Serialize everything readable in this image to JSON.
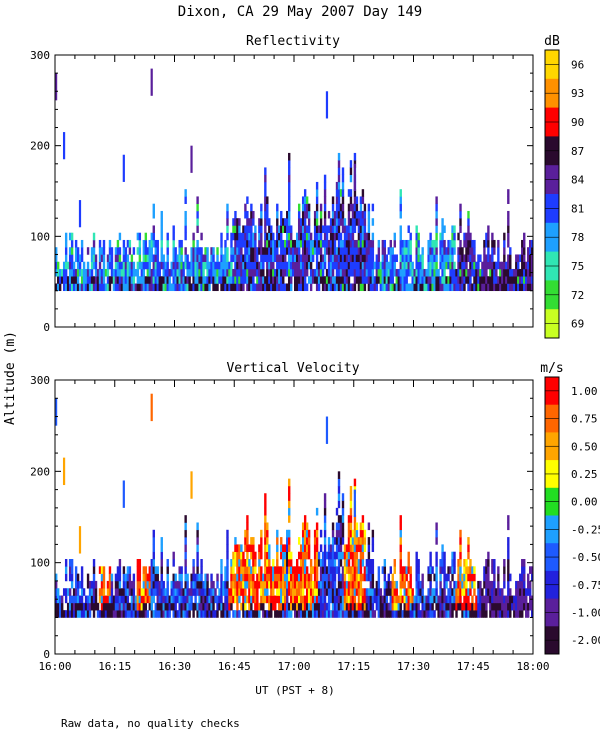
{
  "title": "Dixon, CA 29 May 2007  Day 149",
  "ylabel": "Altitude (m)",
  "xlabel": "UT  (PST + 8)",
  "footnote": "Raw data, no quality checks",
  "chart_data": [
    {
      "type": "heatmap",
      "title": "Reflectivity",
      "colorbar_label": "dB",
      "xlim": [
        0,
        120
      ],
      "ylim": [
        0,
        300
      ],
      "x_ticks": [
        "16:00",
        "16:15",
        "16:30",
        "16:45",
        "17:00",
        "17:15",
        "17:30",
        "17:45",
        "18:00"
      ],
      "y_ticks": [
        0,
        100,
        200,
        300
      ],
      "colorbar_ticks": [
        "96",
        "93",
        "90",
        "87",
        "84",
        "81",
        "78",
        "75",
        "72",
        "69"
      ],
      "colorbar_colors": [
        "#ffd700",
        "#ff9100",
        "#ff0000",
        "#2a0a2e",
        "#5a1f9b",
        "#1e3cff",
        "#1ea0ff",
        "#30e6b4",
        "#33dd33",
        "#c8ff22"
      ],
      "vmin": 69,
      "vmax": 99,
      "gates_m": [
        40,
        300
      ],
      "description_series": [
        {
          "name": "boundary layer echo",
          "altitude_range_m": [
            40,
            140
          ],
          "dominant_dB": [
            78,
            84
          ]
        },
        {
          "name": "elevated echoes",
          "times_min": [
            0,
            2,
            6,
            17,
            24,
            34,
            68,
            75
          ],
          "altitude_m": [
            280,
            215,
            140,
            190,
            285,
            200,
            260,
            180
          ]
        }
      ]
    },
    {
      "type": "heatmap",
      "title": "Vertical Velocity",
      "colorbar_label": "m/s",
      "xlim": [
        0,
        120
      ],
      "ylim": [
        0,
        300
      ],
      "x_ticks": [
        "16:00",
        "16:15",
        "16:30",
        "16:45",
        "17:00",
        "17:15",
        "17:30",
        "17:45",
        "18:00"
      ],
      "y_ticks": [
        0,
        100,
        200,
        300
      ],
      "colorbar_ticks": [
        "1.00",
        "0.75",
        "0.50",
        "0.25",
        "0.00",
        "-0.25",
        "-0.50",
        "-0.75",
        "-1.00",
        "-2.00"
      ],
      "colorbar_colors": [
        "#ff0000",
        "#ff6600",
        "#ffa500",
        "#ffff00",
        "#22dd22",
        "#1ea0ff",
        "#1e5aff",
        "#2222dd",
        "#5a1f9b",
        "#2a0a2e"
      ],
      "vmin": -2.0,
      "vmax": 1.25,
      "gates_m": [
        40,
        300
      ],
      "description_series": [
        {
          "name": "updraft periods",
          "times_min": [
            12,
            22,
            45,
            60,
            74,
            86,
            103
          ],
          "velocity_mps": [
            0.5,
            0.5,
            1.0,
            1.0,
            1.0,
            0.75,
            1.0
          ]
        },
        {
          "name": "downdraft periods",
          "times_min": [
            4,
            38,
            110,
            116
          ],
          "velocity_mps": [
            -1.0,
            -1.0,
            -1.0,
            -1.0
          ]
        }
      ]
    }
  ]
}
